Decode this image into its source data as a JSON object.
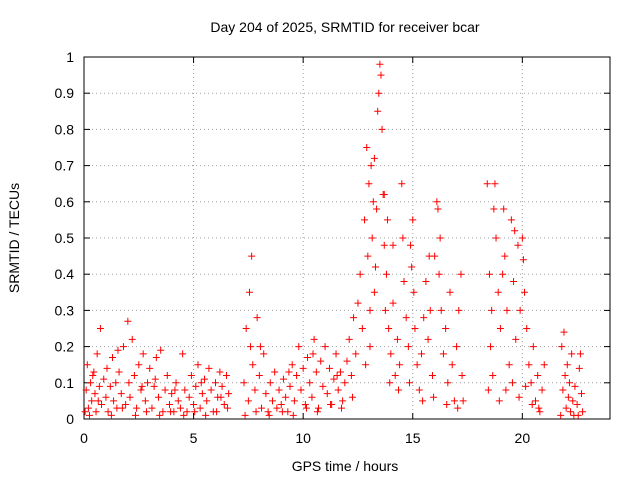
{
  "chart_data": {
    "type": "scatter",
    "title": "Day 204 of 2025, SRMTID for receiver bcar",
    "xlabel": "GPS time / hours",
    "ylabel": "SRMTID / TECUs",
    "xlim": [
      0,
      24
    ],
    "ylim": [
      0,
      1
    ],
    "x_ticks": [
      0,
      5,
      10,
      15,
      20
    ],
    "x_tick_labels": [
      "0",
      "5",
      "10",
      "15",
      "20"
    ],
    "y_ticks": [
      0,
      0.1,
      0.2,
      0.3,
      0.4,
      0.5,
      0.6,
      0.7,
      0.8,
      0.9,
      1
    ],
    "y_tick_labels": [
      "0",
      "0.1",
      "0.2",
      "0.3",
      "0.4",
      "0.5",
      "0.6",
      "0.7",
      "0.8",
      "0.9",
      "1"
    ],
    "grid": true,
    "marker": "+",
    "color": "#ff0000",
    "series": [
      {
        "name": "SRMTID",
        "points": [
          [
            0.05,
            0.02
          ],
          [
            0.1,
            0.08
          ],
          [
            0.15,
            0.15
          ],
          [
            0.2,
            0.03
          ],
          [
            0.3,
            0.1
          ],
          [
            0.35,
            0.05
          ],
          [
            0.4,
            0.12
          ],
          [
            0.5,
            0.07
          ],
          [
            0.55,
            0.02
          ],
          [
            0.6,
            0.18
          ],
          [
            0.7,
            0.09
          ],
          [
            0.75,
            0.25
          ],
          [
            0.8,
            0.04
          ],
          [
            0.9,
            0.11
          ],
          [
            1.0,
            0.06
          ],
          [
            1.05,
            0.14
          ],
          [
            1.1,
            0.02
          ],
          [
            1.2,
            0.09
          ],
          [
            1.3,
            0.17
          ],
          [
            1.35,
            0.05
          ],
          [
            1.45,
            0.1
          ],
          [
            1.5,
            0.03
          ],
          [
            1.6,
            0.13
          ],
          [
            1.7,
            0.07
          ],
          [
            1.8,
            0.2
          ],
          [
            1.9,
            0.04
          ],
          [
            2.0,
            0.27
          ],
          [
            2.05,
            0.1
          ],
          [
            2.1,
            0.06
          ],
          [
            2.2,
            0.22
          ],
          [
            2.3,
            0.12
          ],
          [
            2.4,
            0.03
          ],
          [
            2.5,
            0.15
          ],
          [
            2.6,
            0.08
          ],
          [
            2.7,
            0.18
          ],
          [
            2.8,
            0.05
          ],
          [
            2.9,
            0.1
          ],
          [
            3.0,
            0.14
          ],
          [
            3.1,
            0.03
          ],
          [
            3.2,
            0.09
          ],
          [
            3.3,
            0.17
          ],
          [
            3.4,
            0.06
          ],
          [
            3.5,
            0.19
          ],
          [
            3.6,
            0.02
          ],
          [
            3.7,
            0.08
          ],
          [
            3.8,
            0.12
          ],
          [
            3.9,
            0.04
          ],
          [
            4.0,
            0.07
          ],
          [
            4.1,
            0.02
          ],
          [
            4.2,
            0.1
          ],
          [
            4.3,
            0.05
          ],
          [
            4.4,
            0.03
          ],
          [
            4.5,
            0.18
          ],
          [
            4.6,
            0.08
          ],
          [
            4.7,
            0.02
          ],
          [
            4.8,
            0.06
          ],
          [
            4.9,
            0.12
          ],
          [
            5.0,
            0.04
          ],
          [
            5.1,
            0.09
          ],
          [
            5.2,
            0.15
          ],
          [
            5.3,
            0.03
          ],
          [
            5.4,
            0.07
          ],
          [
            5.5,
            0.11
          ],
          [
            5.6,
            0.05
          ],
          [
            5.7,
            0.14
          ],
          [
            5.8,
            0.08
          ],
          [
            5.9,
            0.02
          ],
          [
            6.0,
            0.1
          ],
          [
            6.1,
            0.06
          ],
          [
            6.2,
            0.13
          ],
          [
            6.3,
            0.09
          ],
          [
            6.4,
            0.04
          ],
          [
            6.5,
            0.12
          ],
          [
            6.6,
            0.07
          ],
          [
            0.25,
            0.01
          ],
          [
            0.65,
            0.05
          ],
          [
            1.25,
            0.01
          ],
          [
            1.75,
            0.03
          ],
          [
            2.35,
            0.01
          ],
          [
            2.85,
            0.02
          ],
          [
            3.45,
            0.01
          ],
          [
            3.95,
            0.02
          ],
          [
            4.55,
            0.01
          ],
          [
            5.05,
            0.02
          ],
          [
            5.55,
            0.01
          ],
          [
            6.05,
            0.02
          ],
          [
            6.55,
            0.03
          ],
          [
            0.45,
            0.13
          ],
          [
            1.55,
            0.19
          ],
          [
            2.65,
            0.09
          ],
          [
            3.25,
            0.11
          ],
          [
            4.15,
            0.08
          ],
          [
            5.35,
            0.1
          ],
          [
            6.25,
            0.06
          ],
          [
            7.3,
            0.1
          ],
          [
            7.4,
            0.25
          ],
          [
            7.5,
            0.05
          ],
          [
            7.55,
            0.35
          ],
          [
            7.6,
            0.2
          ],
          [
            7.65,
            0.45
          ],
          [
            7.7,
            0.15
          ],
          [
            7.8,
            0.08
          ],
          [
            7.9,
            0.28
          ],
          [
            8.0,
            0.12
          ],
          [
            8.1,
            0.03
          ],
          [
            8.2,
            0.18
          ],
          [
            8.3,
            0.07
          ],
          [
            8.4,
            0.02
          ],
          [
            8.5,
            0.1
          ],
          [
            8.6,
            0.05
          ],
          [
            8.7,
            0.13
          ],
          [
            8.8,
            0.03
          ],
          [
            8.9,
            0.08
          ],
          [
            9.0,
            0.04
          ],
          [
            9.1,
            0.11
          ],
          [
            9.2,
            0.06
          ],
          [
            9.3,
            0.02
          ],
          [
            9.4,
            0.09
          ],
          [
            9.5,
            0.15
          ],
          [
            9.6,
            0.05
          ],
          [
            9.7,
            0.12
          ],
          [
            9.8,
            0.2
          ],
          [
            9.9,
            0.08
          ],
          [
            10.0,
            0.14
          ],
          [
            10.1,
            0.04
          ],
          [
            10.2,
            0.17
          ],
          [
            10.3,
            0.1
          ],
          [
            10.4,
            0.06
          ],
          [
            10.5,
            0.22
          ],
          [
            10.6,
            0.13
          ],
          [
            10.7,
            0.03
          ],
          [
            10.8,
            0.16
          ],
          [
            10.9,
            0.09
          ],
          [
            11.0,
            0.2
          ],
          [
            11.1,
            0.07
          ],
          [
            11.2,
            0.14
          ],
          [
            11.3,
            0.04
          ],
          [
            11.4,
            0.11
          ],
          [
            11.5,
            0.18
          ],
          [
            11.6,
            0.08
          ],
          [
            11.7,
            0.13
          ],
          [
            11.8,
            0.05
          ],
          [
            11.9,
            0.1
          ],
          [
            12.0,
            0.16
          ],
          [
            12.1,
            0.22
          ],
          [
            12.2,
            0.12
          ],
          [
            12.3,
            0.28
          ],
          [
            12.4,
            0.18
          ],
          [
            12.5,
            0.32
          ],
          [
            12.6,
            0.4
          ],
          [
            12.7,
            0.25
          ],
          [
            7.35,
            0.01
          ],
          [
            7.85,
            0.02
          ],
          [
            8.45,
            0.01
          ],
          [
            9.05,
            0.02
          ],
          [
            9.55,
            0.01
          ],
          [
            10.15,
            0.03
          ],
          [
            10.65,
            0.02
          ],
          [
            11.25,
            0.04
          ],
          [
            11.75,
            0.03
          ],
          [
            12.25,
            0.06
          ],
          [
            8.05,
            0.2
          ],
          [
            9.35,
            0.13
          ],
          [
            10.45,
            0.18
          ],
          [
            11.55,
            0.12
          ],
          [
            12.8,
            0.55
          ],
          [
            12.9,
            0.75
          ],
          [
            12.95,
            0.45
          ],
          [
            13.0,
            0.65
          ],
          [
            13.05,
            0.3
          ],
          [
            13.1,
            0.7
          ],
          [
            13.15,
            0.5
          ],
          [
            13.2,
            0.6
          ],
          [
            13.25,
            0.35
          ],
          [
            13.3,
            0.42
          ],
          [
            13.35,
            0.58
          ],
          [
            13.4,
            0.85
          ],
          [
            13.45,
            0.9
          ],
          [
            13.5,
            0.98
          ],
          [
            13.55,
            0.95
          ],
          [
            13.6,
            0.8
          ],
          [
            13.65,
            0.62
          ],
          [
            13.7,
            0.48
          ],
          [
            13.75,
            0.3
          ],
          [
            13.8,
            0.4
          ],
          [
            13.85,
            0.55
          ],
          [
            13.9,
            0.25
          ],
          [
            14.0,
            0.18
          ],
          [
            14.1,
            0.32
          ],
          [
            14.2,
            0.12
          ],
          [
            14.3,
            0.22
          ],
          [
            14.4,
            0.15
          ],
          [
            14.5,
            0.65
          ],
          [
            14.55,
            0.5
          ],
          [
            14.6,
            0.38
          ],
          [
            14.7,
            0.28
          ],
          [
            14.8,
            0.2
          ],
          [
            14.9,
            0.48
          ],
          [
            15.0,
            0.55
          ],
          [
            15.05,
            0.35
          ],
          [
            15.1,
            0.25
          ],
          [
            15.2,
            0.15
          ],
          [
            15.3,
            0.08
          ],
          [
            15.4,
            0.18
          ],
          [
            15.5,
            0.28
          ],
          [
            15.6,
            0.38
          ],
          [
            15.7,
            0.22
          ],
          [
            15.8,
            0.3
          ],
          [
            15.9,
            0.12
          ],
          [
            16.0,
            0.45
          ],
          [
            16.1,
            0.6
          ],
          [
            16.15,
            0.58
          ],
          [
            16.2,
            0.4
          ],
          [
            16.3,
            0.3
          ],
          [
            16.4,
            0.18
          ],
          [
            16.5,
            0.25
          ],
          [
            16.6,
            0.1
          ],
          [
            16.7,
            0.35
          ],
          [
            16.8,
            0.15
          ],
          [
            16.9,
            0.05
          ],
          [
            17.0,
            0.2
          ],
          [
            17.1,
            0.3
          ],
          [
            17.2,
            0.4
          ],
          [
            17.25,
            0.12
          ],
          [
            17.3,
            0.05
          ],
          [
            12.85,
            0.15
          ],
          [
            13.05,
            0.2
          ],
          [
            13.95,
            0.1
          ],
          [
            14.35,
            0.08
          ],
          [
            14.85,
            0.1
          ],
          [
            15.45,
            0.05
          ],
          [
            15.95,
            0.06
          ],
          [
            16.55,
            0.04
          ],
          [
            17.05,
            0.03
          ],
          [
            13.25,
            0.72
          ],
          [
            13.7,
            0.62
          ],
          [
            14.1,
            0.48
          ],
          [
            14.95,
            0.42
          ],
          [
            15.75,
            0.45
          ],
          [
            16.25,
            0.5
          ],
          [
            18.4,
            0.65
          ],
          [
            18.5,
            0.4
          ],
          [
            18.55,
            0.2
          ],
          [
            18.6,
            0.3
          ],
          [
            18.7,
            0.58
          ],
          [
            18.75,
            0.65
          ],
          [
            18.8,
            0.5
          ],
          [
            18.9,
            0.35
          ],
          [
            19.0,
            0.25
          ],
          [
            19.1,
            0.4
          ],
          [
            19.2,
            0.45
          ],
          [
            19.3,
            0.3
          ],
          [
            19.4,
            0.15
          ],
          [
            19.5,
            0.55
          ],
          [
            19.6,
            0.38
          ],
          [
            19.7,
            0.22
          ],
          [
            19.8,
            0.48
          ],
          [
            19.9,
            0.3
          ],
          [
            20.0,
            0.5
          ],
          [
            20.1,
            0.35
          ],
          [
            20.2,
            0.25
          ],
          [
            20.3,
            0.15
          ],
          [
            20.4,
            0.1
          ],
          [
            20.5,
            0.2
          ],
          [
            20.6,
            0.05
          ],
          [
            20.7,
            0.12
          ],
          [
            20.8,
            0.02
          ],
          [
            20.9,
            0.08
          ],
          [
            21.0,
            0.15
          ],
          [
            18.45,
            0.08
          ],
          [
            18.65,
            0.12
          ],
          [
            18.95,
            0.05
          ],
          [
            19.25,
            0.08
          ],
          [
            19.55,
            0.1
          ],
          [
            19.85,
            0.06
          ],
          [
            20.15,
            0.09
          ],
          [
            20.45,
            0.04
          ],
          [
            20.75,
            0.03
          ],
          [
            19.15,
            0.58
          ],
          [
            19.65,
            0.52
          ],
          [
            20.05,
            0.44
          ],
          [
            21.8,
            0.2
          ],
          [
            21.85,
            0.08
          ],
          [
            21.9,
            0.24
          ],
          [
            21.95,
            0.12
          ],
          [
            22.0,
            0.03
          ],
          [
            22.05,
            0.15
          ],
          [
            22.1,
            0.06
          ],
          [
            22.15,
            0.1
          ],
          [
            22.2,
            0.02
          ],
          [
            22.25,
            0.18
          ],
          [
            22.3,
            0.05
          ],
          [
            22.4,
            0.09
          ],
          [
            22.5,
            0.04
          ],
          [
            22.6,
            0.14
          ],
          [
            22.65,
            0.18
          ],
          [
            22.7,
            0.07
          ],
          [
            22.75,
            0.02
          ],
          [
            22.35,
            0.01
          ],
          [
            21.75,
            0.01
          ],
          [
            22.55,
            0.01
          ]
        ]
      }
    ]
  }
}
